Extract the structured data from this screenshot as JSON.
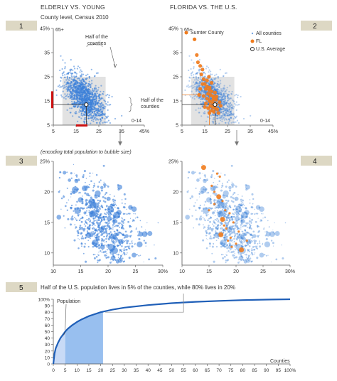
{
  "headers": {
    "left": "ELDERLY VS. YOUNG",
    "left_sub": "County level, Census 2010",
    "right": "FLORIDA VS. THE U.S."
  },
  "panel_numbers": [
    "1",
    "2",
    "3",
    "4",
    "5"
  ],
  "annotations": {
    "half_top": "Half of the counties",
    "half_right": "Half of the counties",
    "bubble_note": "(encoding total population to bubble size)",
    "footer_note": "Half of the U.S. population lives in 5% of the counties, while 80% lives in 20%",
    "population_label": "Population",
    "counties_label": "Counties"
  },
  "legend": {
    "sumter": "Sumter County",
    "all": "All counties",
    "fl": "FL",
    "avg": "U.S. Average"
  },
  "colors": {
    "us_blue": "#3a7fd8",
    "fl_orange": "#f07c1e",
    "badge_bg": "#ddd8c4",
    "shade": "#e2e2e2",
    "red": "#cc1111",
    "curve": "#1f5fb8",
    "fill_light": "#c8daf6",
    "fill_dark": "#98bfef"
  },
  "chart_data": [
    {
      "type": "scatter",
      "panel": "1",
      "title": "ELDERLY VS. YOUNG",
      "subtitle": "County level, Census 2010",
      "x_label_max": "45%",
      "x_label_corner": "0-14",
      "y_label_corner": "65+",
      "x_ticks": [
        "5",
        "15",
        "25",
        "35",
        "45%"
      ],
      "y_ticks": [
        "5",
        "15",
        "25",
        "35",
        "45%"
      ],
      "xlim": [
        5,
        45
      ],
      "ylim": [
        5,
        45
      ],
      "us_average": {
        "x": 19.5,
        "y": 13.5
      },
      "shaded_box": {
        "x": [
          9,
          28
        ],
        "y": [
          5,
          25
        ]
      },
      "median_x": 19.5,
      "median_y": 13.5
    },
    {
      "type": "scatter",
      "panel": "2",
      "title": "FLORIDA VS. THE U.S.",
      "x_label_corner": "0-14",
      "y_label_corner": "65+",
      "x_ticks": [
        "5",
        "15",
        "25",
        "35",
        "45%"
      ],
      "y_ticks": [
        "5",
        "15",
        "25",
        "35",
        "45%"
      ],
      "xlim": [
        5,
        45
      ],
      "ylim": [
        5,
        45
      ],
      "series": [
        {
          "name": "All counties"
        },
        {
          "name": "FL",
          "points": [
            [
              11.5,
              34
            ],
            [
              12,
              31
            ],
            [
              13,
              29.5
            ],
            [
              14,
              28
            ],
            [
              13.5,
              26
            ],
            [
              14.5,
              24
            ],
            [
              15,
              22
            ],
            [
              16,
              21
            ],
            [
              15.5,
              20
            ],
            [
              17,
              19.5
            ],
            [
              18,
              19
            ],
            [
              16.5,
              18
            ],
            [
              17.5,
              17.5
            ],
            [
              18.5,
              17
            ],
            [
              19,
              16.5
            ],
            [
              16,
              16
            ],
            [
              17,
              15
            ],
            [
              18,
              14.5
            ],
            [
              19,
              14
            ],
            [
              20,
              13.5
            ],
            [
              17.5,
              13
            ],
            [
              18.5,
              12.5
            ],
            [
              16.5,
              12
            ],
            [
              19.5,
              12
            ],
            [
              20.5,
              11.5
            ],
            [
              18,
              11
            ],
            [
              19,
              10.5
            ],
            [
              21,
              10
            ],
            [
              17,
              10
            ],
            [
              15.5,
              14
            ],
            [
              14.5,
              17
            ],
            [
              22,
              13
            ],
            [
              20,
              15.5
            ],
            [
              16,
              23.5
            ],
            [
              13,
              20
            ],
            [
              18,
              22.5
            ],
            [
              12.5,
              17.5
            ],
            [
              21.5,
              14.5
            ],
            [
              19.5,
              18.5
            ],
            [
              15,
              12.5
            ],
            [
              17.2,
              20.5
            ],
            [
              20.2,
              16.8
            ],
            [
              16.8,
              25
            ],
            [
              14,
              22
            ],
            [
              18.8,
              15.6
            ]
          ]
        },
        {
          "name": "Sumter County",
          "points": [
            [
              10.5,
              40.5
            ]
          ]
        },
        {
          "name": "U.S. Average",
          "points": [
            [
              19.5,
              13.5
            ]
          ]
        }
      ],
      "fl_average": {
        "x": 17,
        "y": 17.5
      }
    },
    {
      "type": "scatter",
      "panel": "3",
      "note": "(encoding total population to bubble size)",
      "x_ticks": [
        "10",
        "15",
        "20",
        "25",
        "30%"
      ],
      "y_ticks": [
        "10",
        "15",
        "20",
        "25%"
      ],
      "xlim": [
        10,
        30
      ],
      "ylim": [
        8,
        25
      ]
    },
    {
      "type": "scatter",
      "panel": "4",
      "x_ticks": [
        "10",
        "15",
        "20",
        "25",
        "30%"
      ],
      "y_ticks": [
        "10",
        "15",
        "20",
        "25%"
      ],
      "xlim": [
        10,
        30
      ],
      "ylim": [
        8,
        25
      ],
      "series": [
        {
          "name": "FL",
          "points": [
            [
              14,
              24
            ],
            [
              16.5,
              23
            ],
            [
              17,
              22.5
            ],
            [
              15.5,
              21
            ],
            [
              16,
              20
            ],
            [
              16.8,
              19.2
            ],
            [
              17.5,
              18.5
            ],
            [
              18,
              17
            ],
            [
              17.8,
              14.5
            ],
            [
              18.2,
              14
            ],
            [
              17.2,
              13
            ],
            [
              19,
              12.5
            ],
            [
              18.5,
              12
            ],
            [
              20,
              11.5
            ],
            [
              19.2,
              11
            ],
            [
              21,
              10.5
            ],
            [
              16,
              18
            ],
            [
              15,
              17
            ],
            [
              18.8,
              16.5
            ],
            [
              20.5,
              13.5
            ],
            [
              17.5,
              15.5
            ],
            [
              22,
              12
            ],
            [
              19.5,
              15
            ]
          ]
        }
      ]
    },
    {
      "type": "area",
      "panel": "5",
      "title": "Half of the U.S. population lives in 5% of the counties, while 80% lives in 20%",
      "ylabel": "Population",
      "xlabel": "Counties",
      "x_ticks": [
        "0",
        "5",
        "10",
        "15",
        "20",
        "25",
        "30",
        "35",
        "40",
        "45",
        "50",
        "55",
        "60",
        "65",
        "70",
        "75",
        "80",
        "85",
        "90",
        "95",
        "100%"
      ],
      "y_ticks": [
        "0",
        "10",
        "20",
        "30",
        "40",
        "50",
        "60",
        "70",
        "80",
        "90",
        "100%"
      ],
      "x": [
        0,
        0.5,
        1,
        2,
        3,
        4,
        5,
        6,
        8,
        10,
        12,
        15,
        20,
        25,
        30,
        40,
        50,
        60,
        70,
        80,
        90,
        100
      ],
      "y": [
        0,
        16,
        24,
        33,
        40,
        45,
        50,
        54,
        60,
        65,
        69,
        74,
        80,
        84,
        87,
        91,
        94,
        96,
        97.5,
        98.7,
        99.5,
        100
      ],
      "highlights": [
        {
          "x_range": [
            0,
            5
          ],
          "y": 50
        },
        {
          "x_range": [
            5,
            21
          ],
          "y": 80
        }
      ],
      "xlim": [
        0,
        100
      ],
      "ylim": [
        0,
        100
      ]
    }
  ]
}
